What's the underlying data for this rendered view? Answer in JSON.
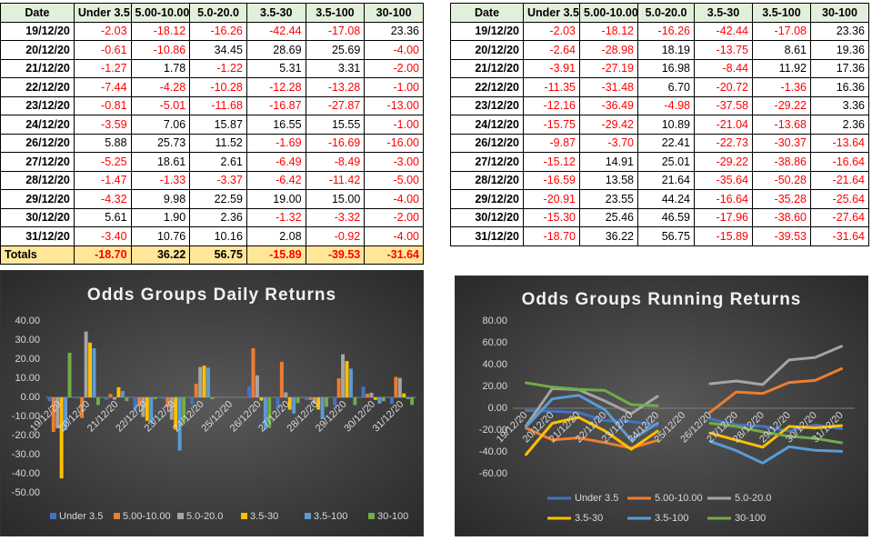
{
  "tables": [
    {
      "header": [
        "Date",
        "Under 3.5",
        "5.00-10.00",
        "5.0-20.0",
        "3.5-30",
        "3.5-100",
        "30-100"
      ],
      "rows": [
        [
          "19/12/20",
          "-2.03",
          "-18.12",
          "-16.26",
          "-42.44",
          "-17.08",
          "23.36"
        ],
        [
          "20/12/20",
          "-0.61",
          "-10.86",
          "34.45",
          "28.69",
          "25.69",
          "-4.00"
        ],
        [
          "21/12/20",
          "-1.27",
          "1.78",
          "-1.22",
          "5.31",
          "3.31",
          "-2.00"
        ],
        [
          "22/12/20",
          "-7.44",
          "-4.28",
          "-10.28",
          "-12.28",
          "-13.28",
          "-1.00"
        ],
        [
          "23/12/20",
          "-0.81",
          "-5.01",
          "-11.68",
          "-16.87",
          "-27.87",
          "-13.00"
        ],
        [
          "24/12/20",
          "-3.59",
          "7.06",
          "15.87",
          "16.55",
          "15.55",
          "-1.00"
        ],
        [
          "26/12/20",
          "5.88",
          "25.73",
          "11.52",
          "-1.69",
          "-16.69",
          "-16.00"
        ],
        [
          "27/12/20",
          "-5.25",
          "18.61",
          "2.61",
          "-6.49",
          "-8.49",
          "-3.00"
        ],
        [
          "28/12/20",
          "-1.47",
          "-1.33",
          "-3.37",
          "-6.42",
          "-11.42",
          "-5.00"
        ],
        [
          "29/12/20",
          "-4.32",
          "9.98",
          "22.59",
          "19.00",
          "15.00",
          "-4.00"
        ],
        [
          "30/12/20",
          "5.61",
          "1.90",
          "2.36",
          "-1.32",
          "-3.32",
          "-2.00"
        ],
        [
          "31/12/20",
          "-3.40",
          "10.76",
          "10.16",
          "2.08",
          "-0.92",
          "-4.00"
        ]
      ],
      "totals": [
        "Totals",
        "-18.70",
        "36.22",
        "56.75",
        "-15.89",
        "-39.53",
        "-31.64"
      ]
    },
    {
      "header": [
        "Date",
        "Under 3.5",
        "5.00-10.00",
        "5.0-20.0",
        "3.5-30",
        "3.5-100",
        "30-100"
      ],
      "rows": [
        [
          "19/12/20",
          "-2.03",
          "-18.12",
          "-16.26",
          "-42.44",
          "-17.08",
          "23.36"
        ],
        [
          "20/12/20",
          "-2.64",
          "-28.98",
          "18.19",
          "-13.75",
          "8.61",
          "19.36"
        ],
        [
          "21/12/20",
          "-3.91",
          "-27.19",
          "16.98",
          "-8.44",
          "11.92",
          "17.36"
        ],
        [
          "22/12/20",
          "-11.35",
          "-31.48",
          "6.70",
          "-20.72",
          "-1.36",
          "16.36"
        ],
        [
          "23/12/20",
          "-12.16",
          "-36.49",
          "-4.98",
          "-37.58",
          "-29.22",
          "3.36"
        ],
        [
          "24/12/20",
          "-15.75",
          "-29.42",
          "10.89",
          "-21.04",
          "-13.68",
          "2.36"
        ],
        [
          "26/12/20",
          "-9.87",
          "-3.70",
          "22.41",
          "-22.73",
          "-30.37",
          "-13.64"
        ],
        [
          "27/12/20",
          "-15.12",
          "14.91",
          "25.01",
          "-29.22",
          "-38.86",
          "-16.64"
        ],
        [
          "28/12/20",
          "-16.59",
          "13.58",
          "21.64",
          "-35.64",
          "-50.28",
          "-21.64"
        ],
        [
          "29/12/20",
          "-20.91",
          "23.55",
          "44.24",
          "-16.64",
          "-35.28",
          "-25.64"
        ],
        [
          "30/12/20",
          "-15.30",
          "25.46",
          "46.59",
          "-17.96",
          "-38.60",
          "-27.64"
        ],
        [
          "31/12/20",
          "-18.70",
          "36.22",
          "56.75",
          "-15.89",
          "-39.53",
          "-31.64"
        ]
      ]
    }
  ],
  "chart_data": [
    {
      "type": "bar",
      "title": "Odds Groups Daily Returns",
      "categories": [
        "19/12/20",
        "20/12/20",
        "21/12/20",
        "22/12/20",
        "23/12/20",
        "24/12/20",
        "25/12/20",
        "26/12/20",
        "27/12/20",
        "28/12/20",
        "29/12/20",
        "30/12/20",
        "31/12/20"
      ],
      "series": [
        {
          "name": "Under 3.5",
          "color": "#4472c4",
          "values": [
            -2.03,
            -0.61,
            -1.27,
            -7.44,
            -0.81,
            -3.59,
            null,
            5.88,
            -5.25,
            -1.47,
            -4.32,
            5.61,
            -3.4
          ]
        },
        {
          "name": "5.00-10.00",
          "color": "#ed7d31",
          "values": [
            -18.12,
            -10.86,
            1.78,
            -4.28,
            -5.01,
            7.06,
            null,
            25.73,
            18.61,
            -1.33,
            9.98,
            1.9,
            10.76
          ]
        },
        {
          "name": "5.0-20.0",
          "color": "#a5a5a5",
          "values": [
            -16.26,
            34.45,
            -1.22,
            -10.28,
            -11.68,
            15.87,
            null,
            11.52,
            2.61,
            -3.37,
            22.59,
            2.36,
            10.16
          ]
        },
        {
          "name": "3.5-30",
          "color": "#ffc000",
          "values": [
            -42.44,
            28.69,
            5.31,
            -12.28,
            -16.87,
            16.55,
            null,
            -1.69,
            -6.49,
            -6.42,
            19.0,
            -1.32,
            2.08
          ]
        },
        {
          "name": "3.5-100",
          "color": "#5b9bd5",
          "values": [
            -17.08,
            25.69,
            3.31,
            -13.28,
            -27.87,
            15.55,
            null,
            -16.69,
            -8.49,
            -11.42,
            15.0,
            -3.32,
            -0.92
          ]
        },
        {
          "name": "30-100",
          "color": "#70ad47",
          "values": [
            23.36,
            -4.0,
            -2.0,
            -1.0,
            -13.0,
            -1.0,
            null,
            -16.0,
            -3.0,
            -5.0,
            -4.0,
            -2.0,
            -4.0
          ]
        }
      ],
      "ylim": [
        -50,
        40
      ],
      "yticks": [
        {
          "value": 40,
          "label": "40.00"
        },
        {
          "value": 30,
          "label": "30.00"
        },
        {
          "value": 20,
          "label": "20.00"
        },
        {
          "value": 10,
          "label": "10.00"
        },
        {
          "value": 0,
          "label": "0.00"
        },
        {
          "value": -10,
          "label": "-10.00"
        },
        {
          "value": -20,
          "label": "-20.00"
        },
        {
          "value": -30,
          "label": "-30.00"
        },
        {
          "value": -40,
          "label": "-40.00"
        },
        {
          "value": -50,
          "label": "-50.00"
        }
      ],
      "grid": false,
      "legend": "bottom"
    },
    {
      "type": "line",
      "title": "Odds Groups Running Returns",
      "categories": [
        "19/12/20",
        "20/12/20",
        "21/12/20",
        "22/12/20",
        "23/12/20",
        "24/12/20",
        "25/12/20",
        "26/12/20",
        "27/12/20",
        "28/12/20",
        "29/12/20",
        "30/12/20",
        "31/12/20"
      ],
      "series": [
        {
          "name": "Under 3.5",
          "color": "#4472c4",
          "values": [
            -2.03,
            -2.64,
            -3.91,
            -11.35,
            -12.16,
            -15.75,
            null,
            -9.87,
            -15.12,
            -16.59,
            -20.91,
            -15.3,
            -18.7
          ]
        },
        {
          "name": "5.00-10.00",
          "color": "#ed7d31",
          "values": [
            -18.12,
            -28.98,
            -27.19,
            -31.48,
            -36.49,
            -29.42,
            null,
            -3.7,
            14.91,
            13.58,
            23.55,
            25.46,
            36.22
          ]
        },
        {
          "name": "5.0-20.0",
          "color": "#a5a5a5",
          "values": [
            -16.26,
            18.19,
            16.98,
            6.7,
            -4.98,
            10.89,
            null,
            22.41,
            25.01,
            21.64,
            44.24,
            46.59,
            56.75
          ]
        },
        {
          "name": "3.5-30",
          "color": "#ffc000",
          "values": [
            -42.44,
            -13.75,
            -8.44,
            -20.72,
            -37.58,
            -21.04,
            null,
            -22.73,
            -29.22,
            -35.64,
            -16.64,
            -17.96,
            -15.89
          ]
        },
        {
          "name": "3.5-100",
          "color": "#5b9bd5",
          "values": [
            -17.08,
            8.61,
            11.92,
            -1.36,
            -29.22,
            -13.68,
            null,
            -30.37,
            -38.86,
            -50.28,
            -35.28,
            -38.6,
            -39.53
          ]
        },
        {
          "name": "30-100",
          "color": "#70ad47",
          "values": [
            23.36,
            19.36,
            17.36,
            16.36,
            3.36,
            2.36,
            null,
            -13.64,
            -16.64,
            -21.64,
            -25.64,
            -27.64,
            -31.64
          ]
        }
      ],
      "ylim": [
        -60,
        80
      ],
      "yticks": [
        {
          "value": 80,
          "label": "80.00"
        },
        {
          "value": 60,
          "label": "60.00"
        },
        {
          "value": 40,
          "label": "40.00"
        },
        {
          "value": 20,
          "label": "20.00"
        },
        {
          "value": 0,
          "label": "0.00"
        },
        {
          "value": -20,
          "label": "-20.00"
        },
        {
          "value": -40,
          "label": "-40.00"
        },
        {
          "value": -60,
          "label": "-60.00"
        }
      ],
      "grid": false,
      "legend": "bottom"
    }
  ]
}
